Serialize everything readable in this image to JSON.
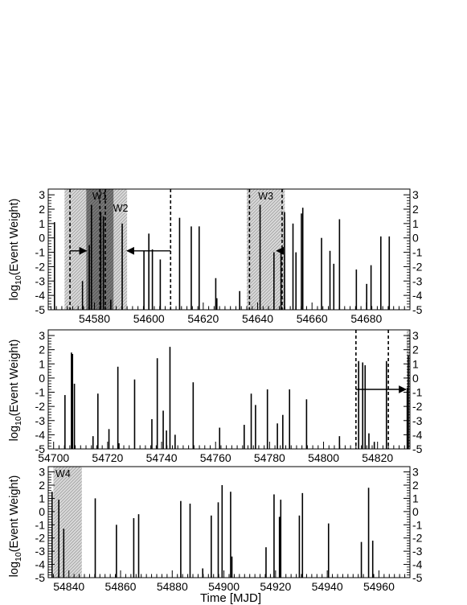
{
  "figure": {
    "x_axis_label": "Time [MJD]",
    "y_axis_label_main": "log",
    "y_axis_label_sub": "10",
    "y_axis_label_rest": "(Event Weight)"
  },
  "chart_data": [
    {
      "type": "bar",
      "panel": "top",
      "xlim": [
        54563,
        54696
      ],
      "ylim": [
        -5,
        3.4
      ],
      "baseline": -5,
      "x_ticks": [
        54580,
        54600,
        54620,
        54640,
        54660,
        54680
      ],
      "y_ticks": [
        -5,
        -4,
        -3,
        -2,
        -1,
        0,
        1,
        2,
        3
      ],
      "y_tick_labels": [
        "-5",
        "-4",
        "-3",
        "-2",
        "-1",
        "0",
        "1",
        "2",
        "3"
      ],
      "windows": [
        {
          "label": "W1",
          "x0": 54577,
          "x1": 54587,
          "shade": "dark"
        },
        {
          "label": "W2",
          "x0": 54569,
          "x1": 54592,
          "shade": "light"
        },
        {
          "label": "W3",
          "x0": 54636,
          "x1": 54650,
          "shade": "light"
        }
      ],
      "dashed_lines": [
        54571,
        54582,
        54584,
        54608,
        54637,
        54649
      ],
      "arrows": [
        {
          "from": 54571,
          "to": 54577,
          "y": -0.9
        },
        {
          "from": 54608,
          "to": 54592,
          "y": -0.9
        },
        {
          "from": 54649,
          "to": 54647,
          "y": -0.9
        }
      ],
      "events": [
        {
          "x": 54565.3,
          "y": 1.1
        },
        {
          "x": 54575.6,
          "y": -3.0
        },
        {
          "x": 54578.1,
          "y": -0.5
        },
        {
          "x": 54578.9,
          "y": 2.3
        },
        {
          "x": 54582.3,
          "y": 1.8
        },
        {
          "x": 54583.3,
          "y": 1.5
        },
        {
          "x": 54586.0,
          "y": -4.3
        },
        {
          "x": 54590.2,
          "y": 1.0
        },
        {
          "x": 54598.2,
          "y": -0.9
        },
        {
          "x": 54600.0,
          "y": 0.3
        },
        {
          "x": 54601.3,
          "y": -0.8
        },
        {
          "x": 54604.2,
          "y": -1.5
        },
        {
          "x": 54611.3,
          "y": 1.4
        },
        {
          "x": 54615.6,
          "y": 0.8
        },
        {
          "x": 54618.5,
          "y": 0.8
        },
        {
          "x": 54624.6,
          "y": -2.8
        },
        {
          "x": 54625.0,
          "y": -4.2
        },
        {
          "x": 54633.4,
          "y": -3.7
        },
        {
          "x": 54640.9,
          "y": 2.3
        },
        {
          "x": 54646.0,
          "y": -1.0
        },
        {
          "x": 54648.6,
          "y": -0.8
        },
        {
          "x": 54649.9,
          "y": 1.8
        },
        {
          "x": 54653.0,
          "y": 1.0
        },
        {
          "x": 54654.1,
          "y": -1.0
        },
        {
          "x": 54656.1,
          "y": 1.7
        },
        {
          "x": 54656.6,
          "y": 2.1
        },
        {
          "x": 54663.5,
          "y": 0.0
        },
        {
          "x": 54666.6,
          "y": -0.9
        },
        {
          "x": 54668.0,
          "y": -1.8
        },
        {
          "x": 54670.1,
          "y": 1.3
        },
        {
          "x": 54676.3,
          "y": -2.2
        },
        {
          "x": 54680.1,
          "y": -3.2
        },
        {
          "x": 54681.7,
          "y": -1.9
        },
        {
          "x": 54685.3,
          "y": 0.1
        },
        {
          "x": 54688.4,
          "y": 0.1
        }
      ]
    },
    {
      "type": "bar",
      "panel": "middle",
      "xlim": [
        54698,
        54832
      ],
      "ylim": [
        -5,
        3.4
      ],
      "baseline": -5,
      "x_ticks": [
        54700,
        54720,
        54740,
        54760,
        54780,
        54800,
        54820
      ],
      "y_ticks": [
        -5,
        -4,
        -3,
        -2,
        -1,
        0,
        1,
        2,
        3
      ],
      "y_tick_labels": [
        "-5",
        "-4",
        "-3",
        "-2",
        "-1",
        "0",
        "1",
        "2",
        "3"
      ],
      "windows": [
        {
          "label": "",
          "x0": 54830.8,
          "x1": 54832,
          "shade": "light"
        }
      ],
      "dashed_lines": [
        54812,
        54824
      ],
      "arrows": [
        {
          "from": 54812,
          "to": 54830.5,
          "y": -0.8
        }
      ],
      "events": [
        {
          "x": 54704.2,
          "y": -1.2
        },
        {
          "x": 54706.6,
          "y": 1.8
        },
        {
          "x": 54707.0,
          "y": 1.7
        },
        {
          "x": 54707.7,
          "y": -0.4
        },
        {
          "x": 54714.6,
          "y": -4.1
        },
        {
          "x": 54716.4,
          "y": -1.1
        },
        {
          "x": 54720.5,
          "y": -3.6
        },
        {
          "x": 54723.8,
          "y": 0.8
        },
        {
          "x": 54724.2,
          "y": -4.6
        },
        {
          "x": 54730.0,
          "y": -0.1
        },
        {
          "x": 54736.4,
          "y": -2.9
        },
        {
          "x": 54738.4,
          "y": 1.4
        },
        {
          "x": 54740.6,
          "y": -2.3
        },
        {
          "x": 54741.8,
          "y": -3.7
        },
        {
          "x": 54743.1,
          "y": 2.2
        },
        {
          "x": 54745.0,
          "y": -4.0
        },
        {
          "x": 54751.7,
          "y": -0.3
        },
        {
          "x": 54761.5,
          "y": -3.5
        },
        {
          "x": 54770.6,
          "y": -3.3
        },
        {
          "x": 54773.2,
          "y": -1.1
        },
        {
          "x": 54774.8,
          "y": -1.9
        },
        {
          "x": 54779.2,
          "y": -0.8
        },
        {
          "x": 54782.9,
          "y": -3.2
        },
        {
          "x": 54784.9,
          "y": -2.6
        },
        {
          "x": 54787.4,
          "y": -0.8
        },
        {
          "x": 54793.7,
          "y": -1.5
        },
        {
          "x": 54805.9,
          "y": -4.1
        },
        {
          "x": 54813.0,
          "y": 1.2
        },
        {
          "x": 54814.5,
          "y": 1.1
        },
        {
          "x": 54815.4,
          "y": 0.9
        },
        {
          "x": 54816.8,
          "y": -3.9
        },
        {
          "x": 54818.8,
          "y": -4.5
        },
        {
          "x": 54823.3,
          "y": 1.2
        },
        {
          "x": 54831.0,
          "y": -0.7
        },
        {
          "x": 54831.4,
          "y": 1.6
        }
      ]
    },
    {
      "type": "bar",
      "panel": "bottom",
      "xlim": [
        54832,
        54972
      ],
      "ylim": [
        -5,
        3.4
      ],
      "baseline": -5,
      "x_ticks": [
        54840,
        54860,
        54880,
        54900,
        54920,
        54940,
        54960
      ],
      "y_ticks": [
        -5,
        -4,
        -3,
        -2,
        -1,
        0,
        1,
        2,
        3
      ],
      "y_tick_labels": [
        "-5",
        "-4",
        "-3",
        "-2",
        "-1",
        "0",
        "1",
        "2",
        "3"
      ],
      "windows": [
        {
          "label": "W4",
          "x0": 54834,
          "x1": 54845,
          "shade": "light"
        }
      ],
      "dashed_lines": [],
      "arrows": [],
      "events": [
        {
          "x": 54833.5,
          "y": 1.5
        },
        {
          "x": 54836.1,
          "y": 0.9
        },
        {
          "x": 54838.0,
          "y": -1.3
        },
        {
          "x": 54850.2,
          "y": 1.0
        },
        {
          "x": 54858.4,
          "y": -1.0
        },
        {
          "x": 54865.1,
          "y": -0.5
        },
        {
          "x": 54867.0,
          "y": -0.2
        },
        {
          "x": 54883.3,
          "y": 0.8
        },
        {
          "x": 54886.9,
          "y": 0.6
        },
        {
          "x": 54891.8,
          "y": -4.3
        },
        {
          "x": 54895.1,
          "y": -0.3
        },
        {
          "x": 54897.8,
          "y": 0.7
        },
        {
          "x": 54899.3,
          "y": 2.0
        },
        {
          "x": 54902.6,
          "y": 1.5
        },
        {
          "x": 54903.1,
          "y": -3.4
        },
        {
          "x": 54916.3,
          "y": -2.7
        },
        {
          "x": 54919.4,
          "y": 1.3
        },
        {
          "x": 54921.5,
          "y": -0.4
        },
        {
          "x": 54922.0,
          "y": 0.9
        },
        {
          "x": 54929.2,
          "y": -0.3
        },
        {
          "x": 54930.4,
          "y": 1.4
        },
        {
          "x": 54940.5,
          "y": -0.9
        },
        {
          "x": 54953.2,
          "y": -2.3
        },
        {
          "x": 54956.0,
          "y": 1.8
        },
        {
          "x": 54957.6,
          "y": -2.2
        }
      ]
    }
  ]
}
